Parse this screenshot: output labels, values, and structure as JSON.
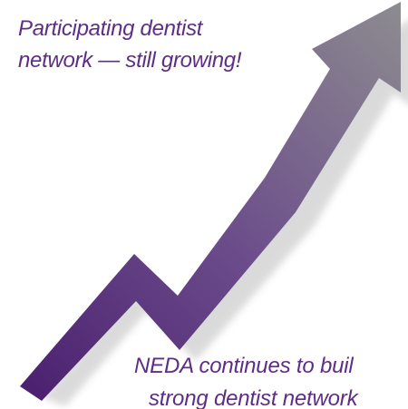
{
  "headline": {
    "line1": "Participating dentist",
    "line2": "network — still growing!"
  },
  "footer": {
    "line1": "NEDA continues to buil",
    "line2": "strong dentist network"
  },
  "colors": {
    "text": "#5e2d86",
    "arrow_dark": "#4a1f6e",
    "arrow_light": "#8a8a8e",
    "shadow": "#c8c8c8"
  },
  "icons": {
    "arrow": "upward-trend-arrow-icon"
  }
}
